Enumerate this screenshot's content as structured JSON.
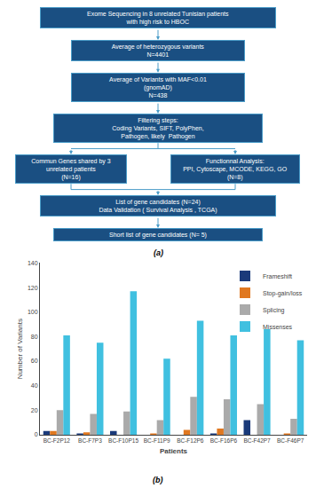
{
  "chart_data": {
    "type": "bar",
    "annotations": [
      "Exome Sequencing in 8 unrelated Tunisian patients\nwith high risk to HBOC",
      "Average of heterozygous variants\nN=4401",
      "Average of Variants with MAF<0.01\n(gnomAD)\nN=438",
      "Filtering steps:\nCoding Variants, SIFT, PolyPhen,\nPathogen, likely  Pathogen",
      "Commun Genes shared by 3\nunrelated patients\n(N=16)",
      "Functionnal Analysis:\nPPI, Cytoscape, MCODE, KEGG, GO\n(N=8)",
      "List of gene candidates (N=24)\nData Validation ( Survival Analysis , TCGA)",
      "Short list of gene candidates (N= 5)",
      "(a)",
      "(b)"
    ],
    "xlabel": "Patients",
    "ylabel": "Number of Variants",
    "categories": [
      "BC-F2P12",
      "BC-F7P3",
      "BC-F10P15",
      "BC-F11P9",
      "BC-F12P6",
      "BC-F16P6",
      "BC-F42P7",
      "BC-F46P7"
    ],
    "series": [
      {
        "name": "Frameshift",
        "color": "#1a3a7a",
        "values": [
          3,
          1,
          3,
          0,
          0,
          1,
          12,
          0
        ]
      },
      {
        "name": "Stop-gain/loss",
        "color": "#e07820",
        "values": [
          3,
          2,
          0,
          1,
          4,
          5,
          0,
          1
        ]
      },
      {
        "name": "Splicing",
        "color": "#aaaaaa",
        "values": [
          20,
          17,
          19,
          12,
          31,
          29,
          25,
          13
        ]
      },
      {
        "name": "Missenses",
        "color": "#40c0e0",
        "values": [
          81,
          75,
          117,
          62,
          93,
          81,
          86,
          77
        ]
      }
    ],
    "ylim": [
      0,
      140
    ],
    "yticks": [
      0,
      20,
      40,
      60,
      80,
      100,
      120,
      140
    ],
    "grid": false,
    "legend": "upper right"
  }
}
